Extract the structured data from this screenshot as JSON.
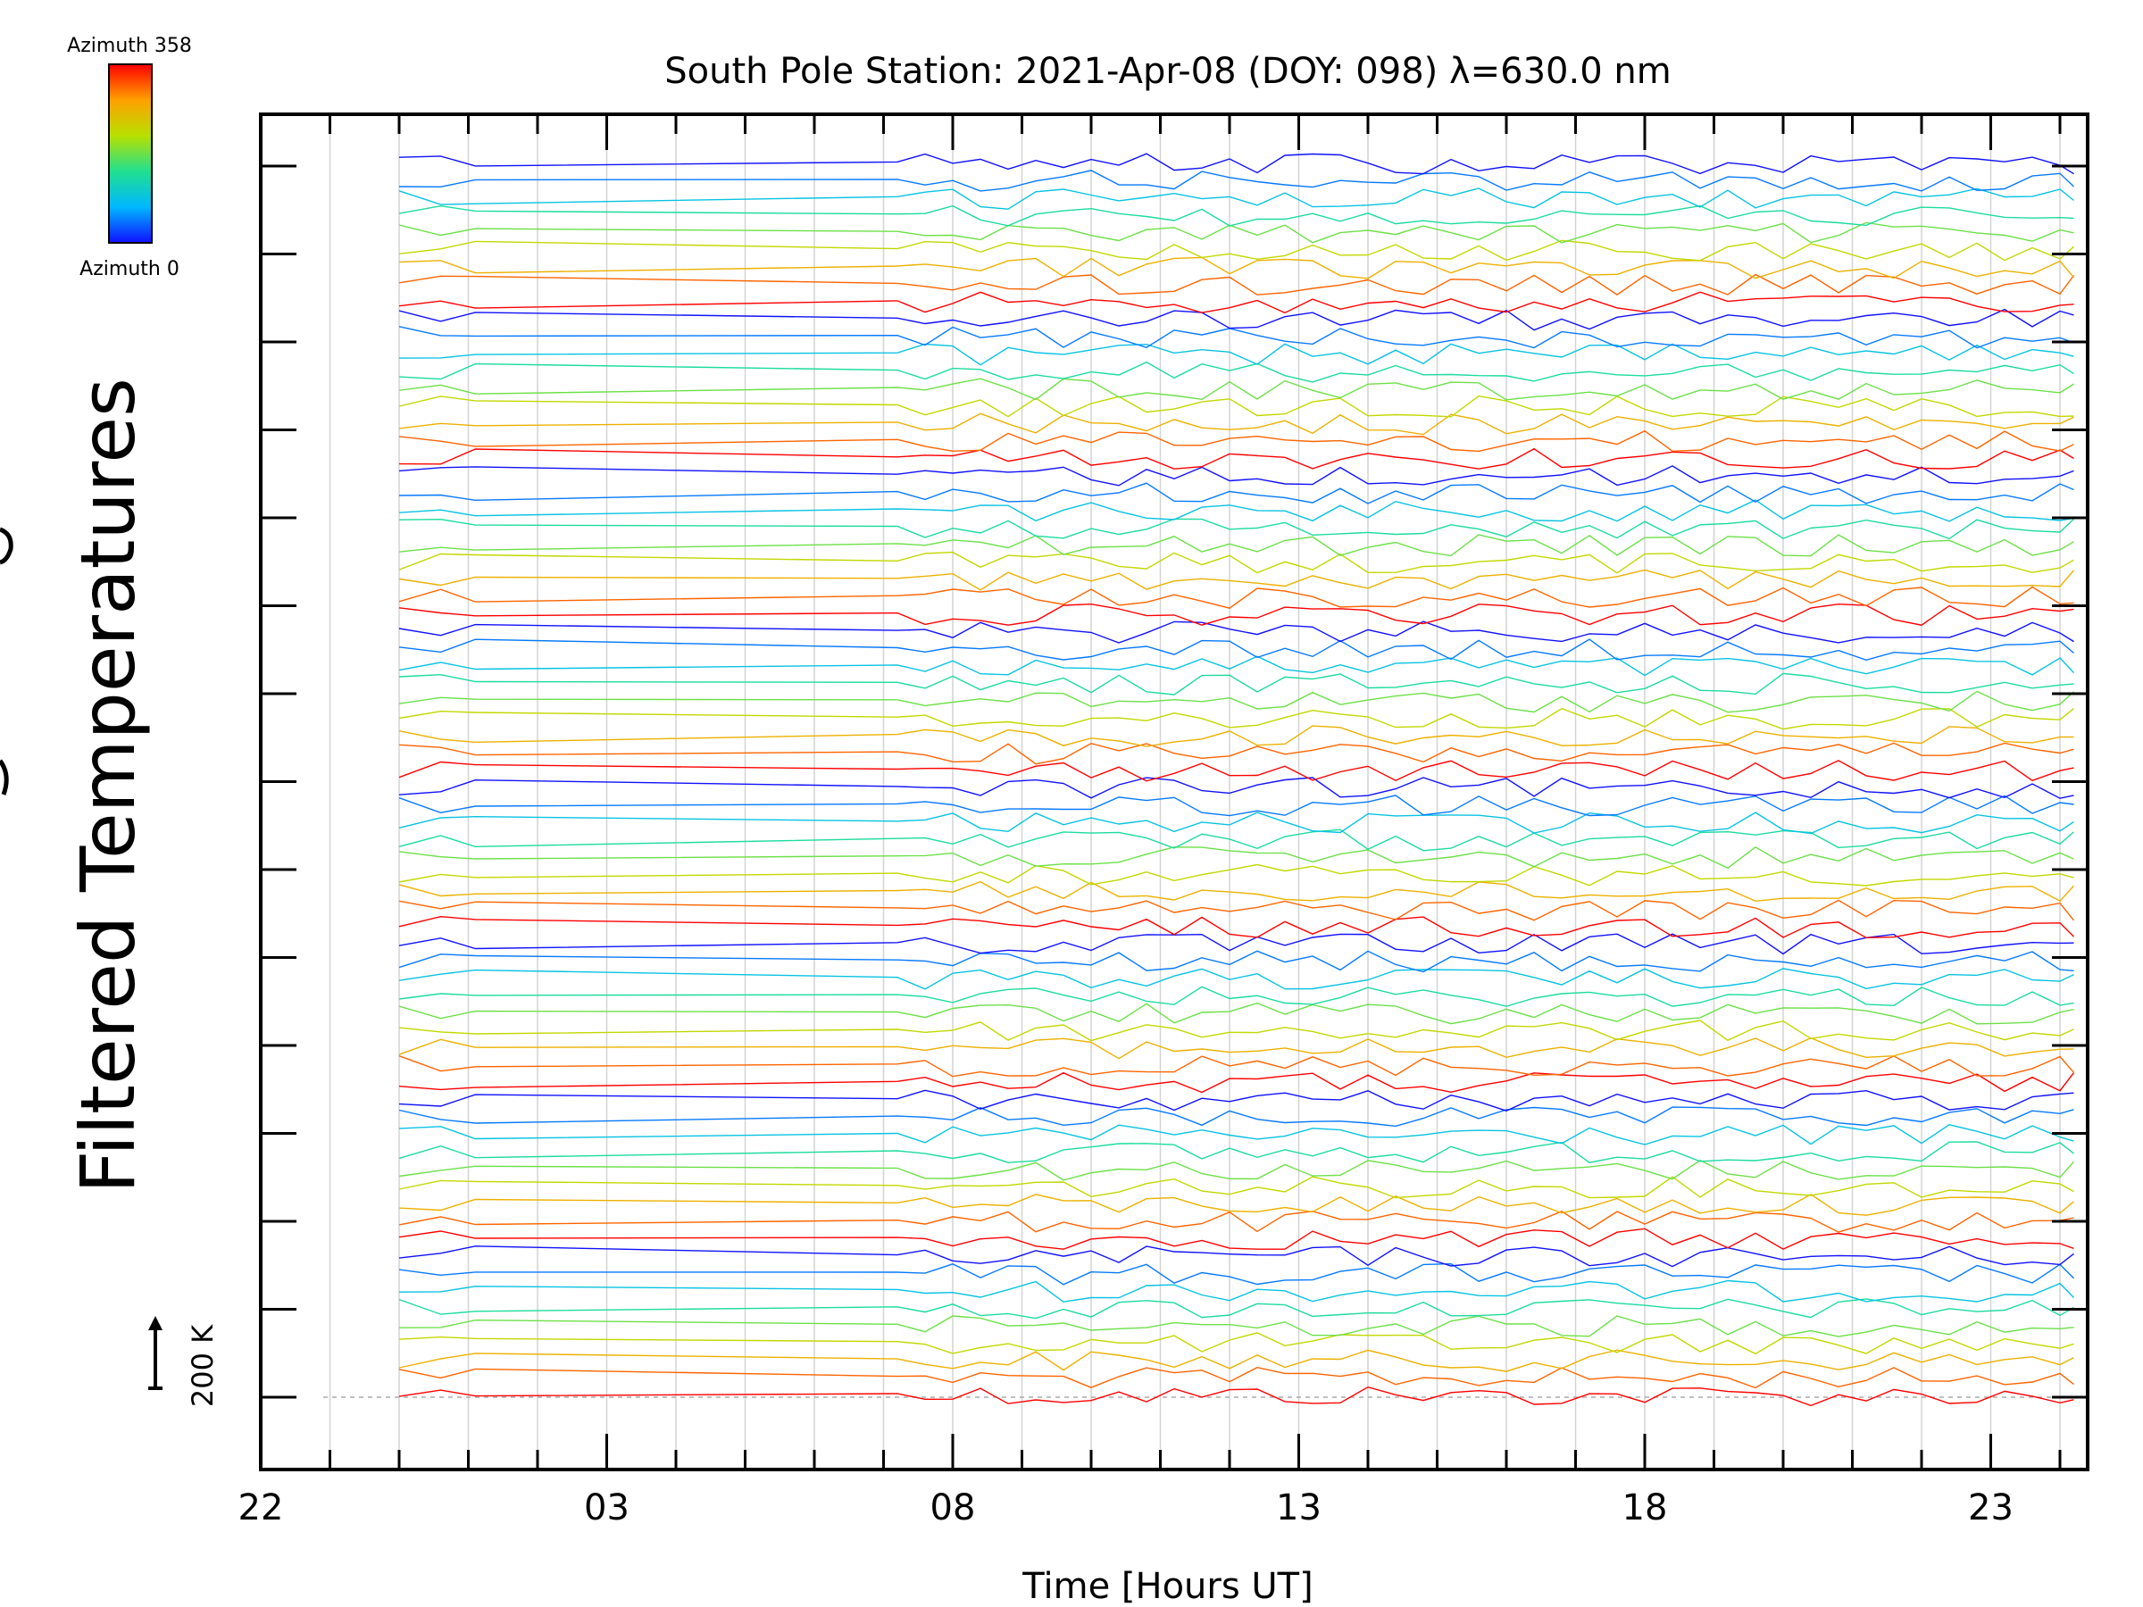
{
  "chart_data": {
    "type": "line",
    "title": "South Pole Station: 2021-Apr-08 (DOY: 098) λ=630.0 nm",
    "xlabel": "Time [Hours UT]",
    "ylabel": "Filtered Temperatures",
    "xlim": [
      22,
      48.4
    ],
    "x_ticks": [
      {
        "value": 22,
        "label": "22"
      },
      {
        "value": 27,
        "label": "03"
      },
      {
        "value": 32,
        "label": "08"
      },
      {
        "value": 37,
        "label": "13"
      },
      {
        "value": 42,
        "label": "18"
      },
      {
        "value": 47,
        "label": "23"
      }
    ],
    "x_minor_step": 1,
    "y_tick_count": 15,
    "grid": true,
    "colorbar": {
      "top_label": "Azimuth 358",
      "bottom_label": "Azimuth 0",
      "colormap": "rainbow (blue to red)",
      "min": 0,
      "max": 358
    },
    "scale_bar": {
      "label": "200 K",
      "kelvin": 200
    },
    "series_description": "Stacked filtered temperature traces, one per azimuth, each offset vertically and coloured by azimuth; 8 azimuth cycles of 9 traces each",
    "n_cycles": 8,
    "traces_per_cycle": 9,
    "data_start_hour": 24.0,
    "gap_start_hour": 25.1,
    "gap_end_hour": 31.2,
    "data_end_hour": 48.2
  }
}
